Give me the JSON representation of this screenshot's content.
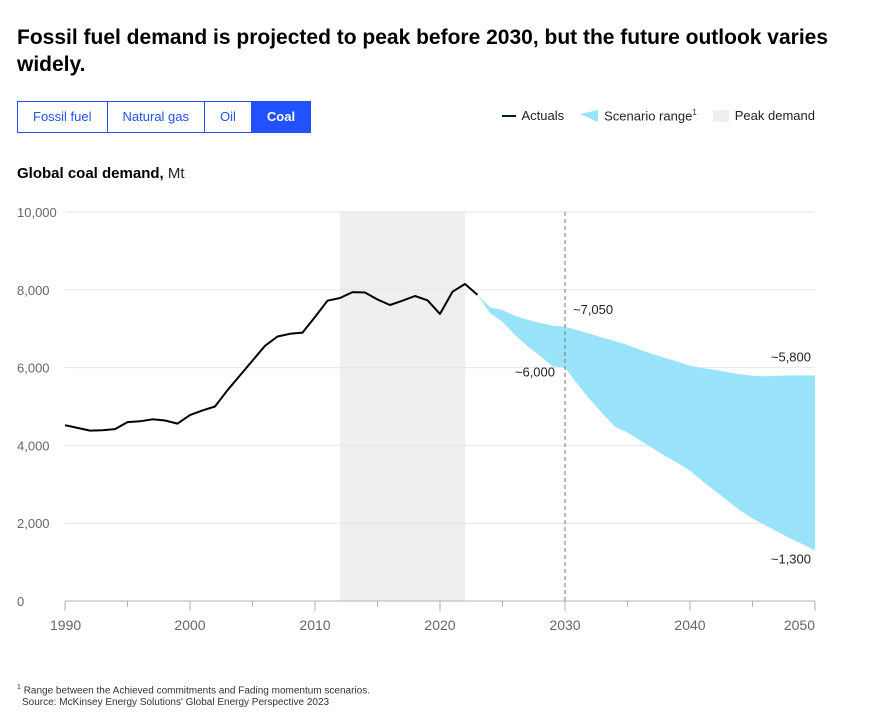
{
  "header": {
    "title": "Fossil fuel demand is projected to peak before 2030, but the future outlook varies widely."
  },
  "tabs": [
    {
      "label": "Fossil fuel",
      "active": false
    },
    {
      "label": "Natural gas",
      "active": false
    },
    {
      "label": "Oil",
      "active": false
    },
    {
      "label": "Coal",
      "active": true
    }
  ],
  "legend": {
    "actuals": "Actuals",
    "scenario": "Scenario range",
    "scenario_sup": "1",
    "peak": "Peak demand"
  },
  "subtitle": {
    "label": "Global coal demand,",
    "unit": "Mt"
  },
  "footnote": {
    "note_sup": "1",
    "note": "Range between the Achieved commitments and Fading momentum scenarios.",
    "source": "Source: McKinsey Energy Solutions' Global Energy Perspective 2023"
  },
  "colors": {
    "accent": "#2251ff",
    "actuals": "#051c2c",
    "scenario": "#99e3fa",
    "peak_band": "#efefef",
    "grid": "#e6e6e6"
  },
  "chart_data": {
    "type": "area",
    "xlim": [
      1990,
      2050
    ],
    "ylim": [
      0,
      10000
    ],
    "x_ticks": [
      1990,
      2000,
      2010,
      2020,
      2030,
      2040,
      2050
    ],
    "y_ticks": [
      0,
      2000,
      4000,
      6000,
      8000,
      10000
    ],
    "y_tick_labels": [
      "0",
      "2,000",
      "4,000",
      "6,000",
      "8,000",
      "10,000"
    ],
    "grid": true,
    "legend_position": "top-right",
    "peak_demand_range": [
      2012,
      2022
    ],
    "reference_line_x": 2030,
    "actuals": {
      "name": "Actuals",
      "x": [
        1990,
        1991,
        1992,
        1993,
        1994,
        1995,
        1996,
        1997,
        1998,
        1999,
        2000,
        2001,
        2002,
        2003,
        2004,
        2005,
        2006,
        2007,
        2008,
        2009,
        2010,
        2011,
        2012,
        2013,
        2014,
        2015,
        2016,
        2017,
        2018,
        2019,
        2020,
        2021,
        2022,
        2023
      ],
      "y": [
        4520,
        4450,
        4380,
        4390,
        4420,
        4600,
        4620,
        4670,
        4640,
        4560,
        4780,
        4900,
        5000,
        5420,
        5800,
        6180,
        6560,
        6800,
        6870,
        6900,
        7300,
        7720,
        7790,
        7940,
        7930,
        7750,
        7610,
        7720,
        7840,
        7730,
        7380,
        7950,
        8150,
        7870
      ]
    },
    "scenario_range": {
      "name": "Scenario range",
      "x": [
        2023,
        2024,
        2025,
        2026,
        2027,
        2028,
        2029,
        2030,
        2031,
        2032,
        2033,
        2034,
        2035,
        2036,
        2037,
        2038,
        2039,
        2040,
        2041,
        2042,
        2043,
        2044,
        2045,
        2046,
        2047,
        2048,
        2049,
        2050
      ],
      "upper": [
        7870,
        7550,
        7480,
        7330,
        7230,
        7150,
        7080,
        7050,
        6960,
        6870,
        6770,
        6680,
        6580,
        6460,
        6350,
        6250,
        6150,
        6050,
        5990,
        5940,
        5880,
        5830,
        5790,
        5780,
        5790,
        5800,
        5800,
        5800
      ],
      "lower": [
        7870,
        7400,
        7180,
        6840,
        6550,
        6300,
        6030,
        6000,
        5570,
        5180,
        4820,
        4480,
        4330,
        4130,
        3930,
        3730,
        3550,
        3350,
        3080,
        2830,
        2580,
        2330,
        2120,
        1950,
        1780,
        1610,
        1460,
        1300
      ]
    },
    "annotations": [
      {
        "text": "~7,050",
        "x": 2030,
        "y": 7050
      },
      {
        "text": "~6,000",
        "x": 2030,
        "y": 6000
      },
      {
        "text": "~5,800",
        "x": 2050,
        "y": 5800
      },
      {
        "text": "~1,300",
        "x": 2050,
        "y": 1300
      }
    ]
  }
}
